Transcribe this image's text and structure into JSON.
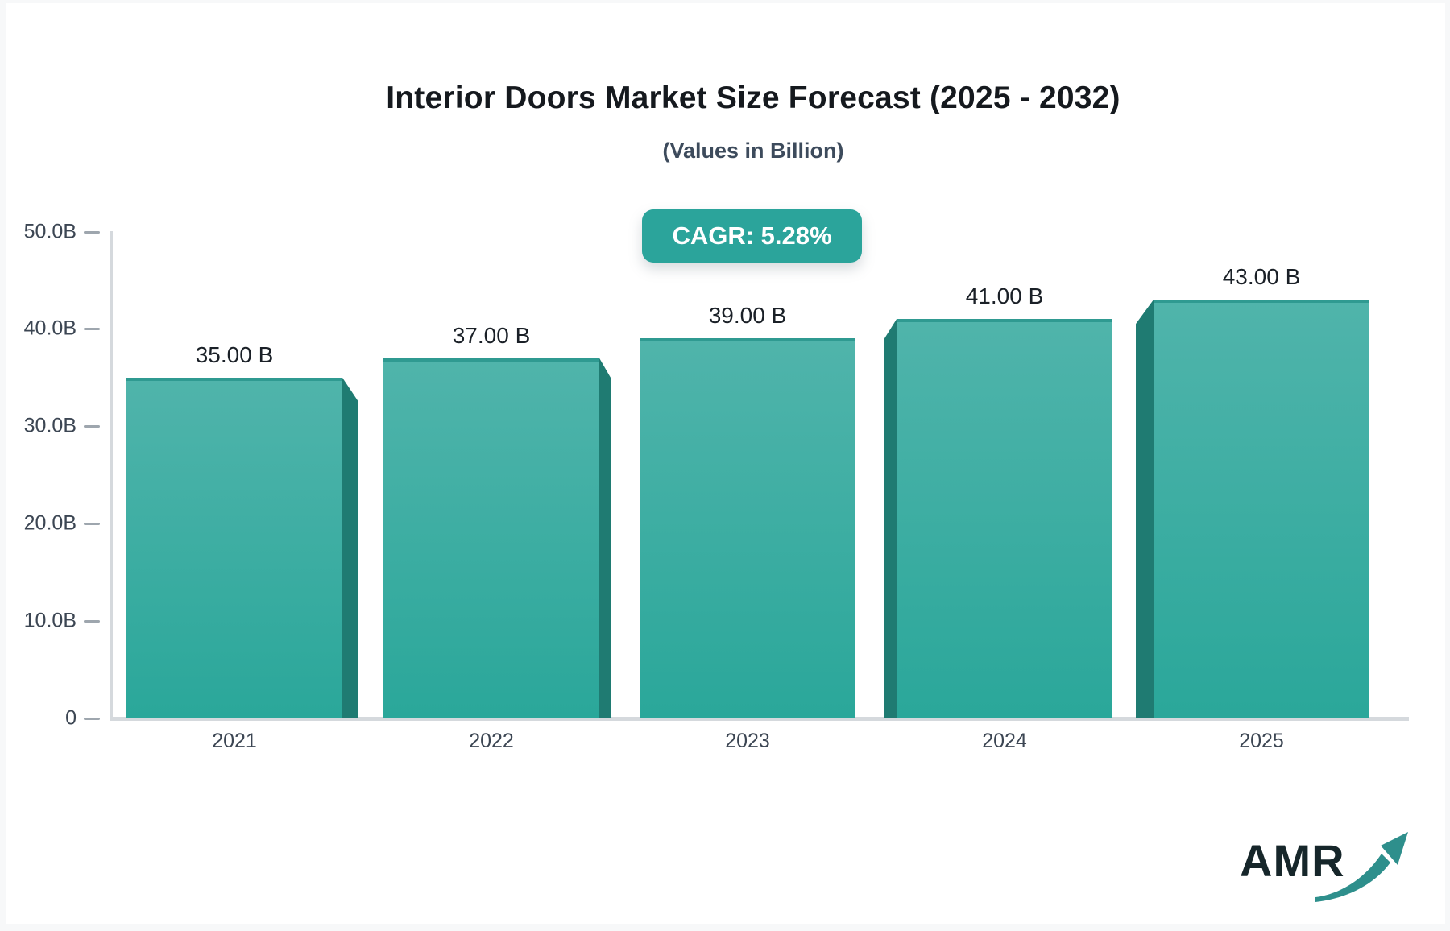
{
  "chart_data": {
    "type": "bar",
    "title": "Interior Doors Market Size Forecast (2025 - 2032)",
    "subtitle": "(Values in Billion)",
    "annotation_badge": "CAGR: 5.28%",
    "categories": [
      "2021",
      "2022",
      "2023",
      "2024",
      "2025"
    ],
    "values": [
      35,
      37,
      39,
      41,
      43
    ],
    "value_labels": [
      "35.00 B",
      "37.00 B",
      "39.00 B",
      "41.00 B",
      "43.00 B"
    ],
    "ylim": [
      0,
      50
    ],
    "ytick_values": [
      0,
      10,
      20,
      30,
      40,
      50
    ],
    "ytick_labels": [
      "0",
      "10.0B",
      "20.0B",
      "30.0B",
      "40.0B",
      "50.0B"
    ],
    "grid": false,
    "legend": false
  },
  "colors": {
    "badge_background": "#2BA49B",
    "badge_text": "#FFFFFF",
    "bar_gradient_top": "#50B4AB",
    "bar_gradient_bottom": "#2AA79A",
    "bar_top_edge": "#2F9A91",
    "bar_side": "#1F7B72",
    "axis_line": "#D5D9DD",
    "tick_dash": "#9EA6AE",
    "tick_text": "#3C4653",
    "value_text": "#1A2027",
    "title_text": "#15191E",
    "subtitle_text": "#3D4B5C",
    "logo_text": "#16262A",
    "logo_arrow": "#2E8F8C",
    "frame_background": "#F7F8F9",
    "card_background": "#FFFFFF"
  },
  "logo": {
    "text": "AMR"
  }
}
